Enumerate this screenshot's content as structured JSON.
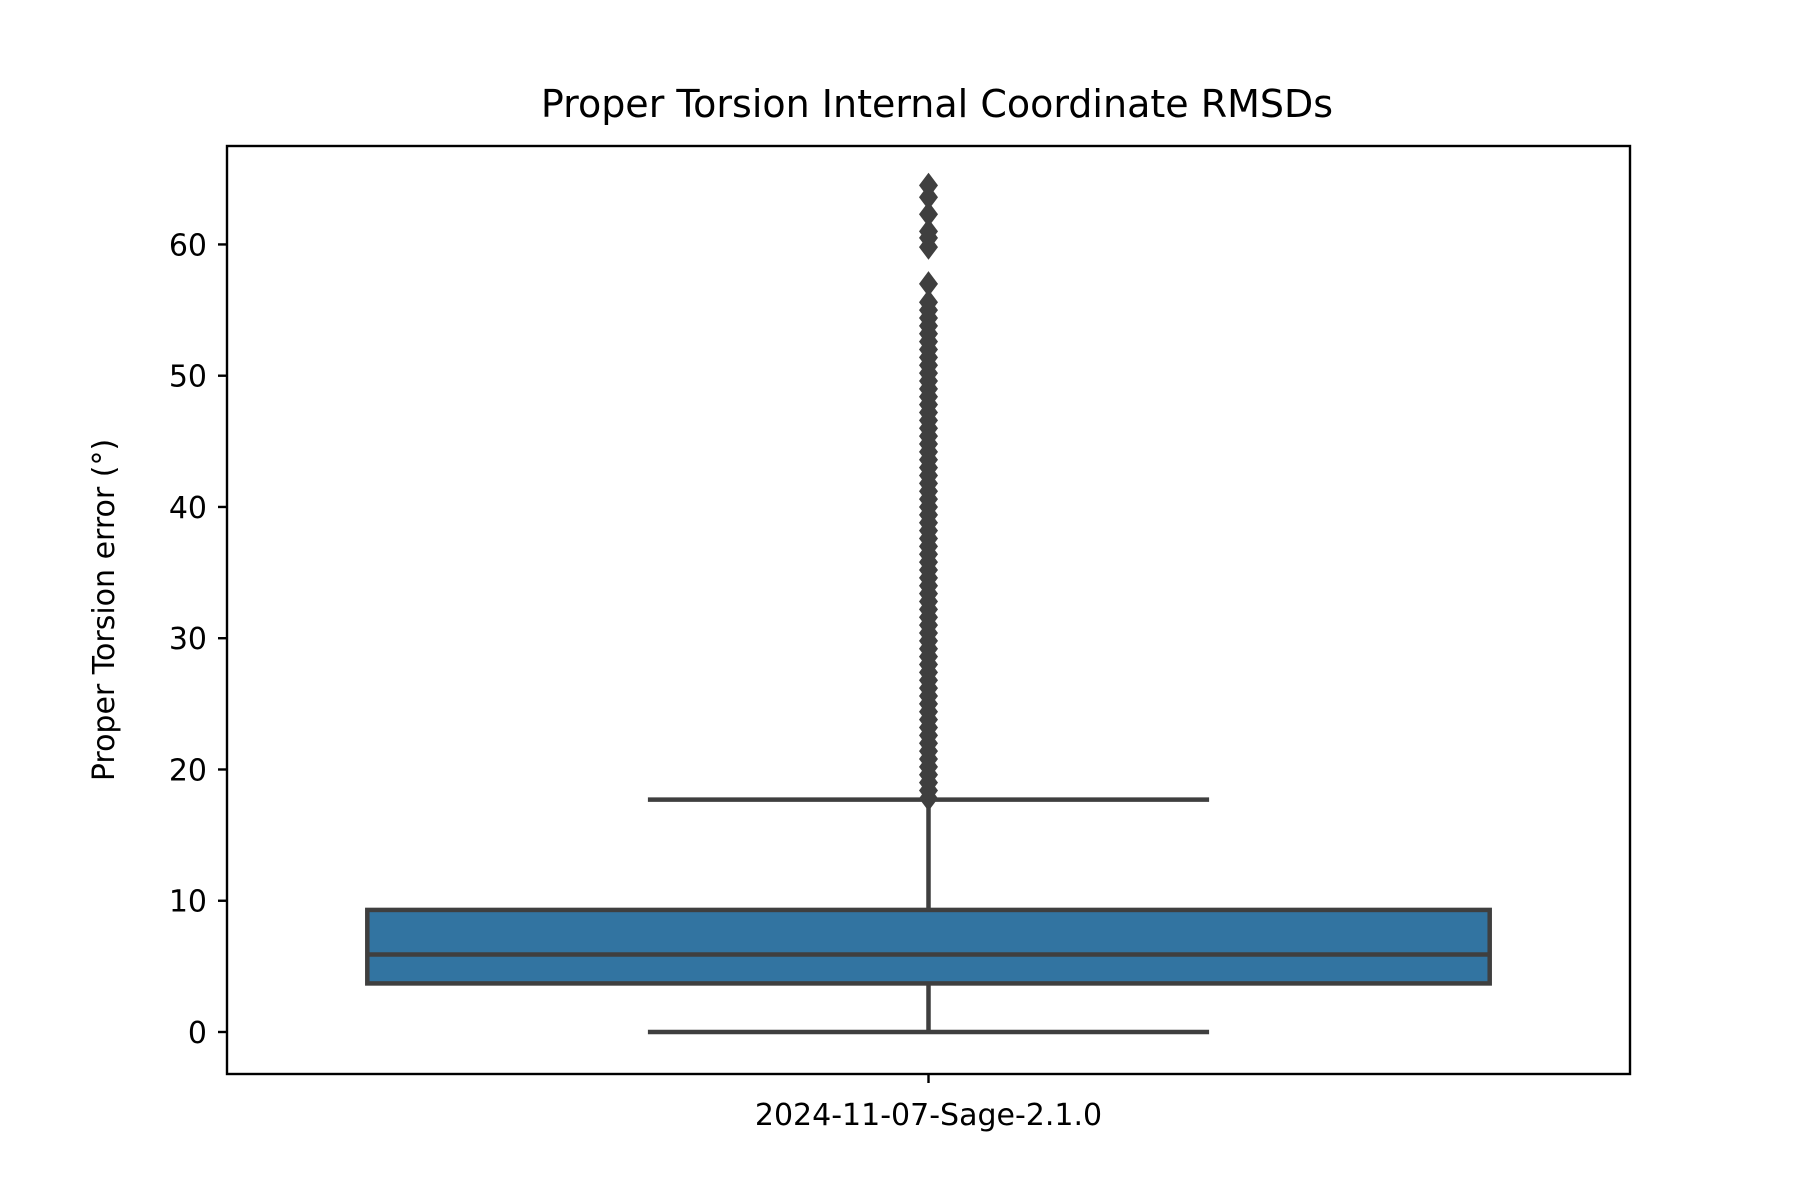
{
  "chart_data": {
    "type": "box",
    "title": "Proper Torsion Internal Coordinate RMSDs",
    "xlabel": "",
    "ylabel": "Proper Torsion error (°)",
    "categories": [
      "2024-11-07-Sage-2.1.0"
    ],
    "ylim": [
      -3.2,
      67.5
    ],
    "yticks": [
      0,
      10,
      20,
      30,
      40,
      50,
      60
    ],
    "ytick_labels": [
      "0",
      "10",
      "20",
      "30",
      "40",
      "50",
      "60"
    ],
    "grid": false,
    "legend": "none",
    "box_color": "#3274a1",
    "line_color": "#3f3f3f",
    "boxes": [
      {
        "category": "2024-11-07-Sage-2.1.0",
        "whisker_low": 0.0,
        "q1": 3.7,
        "median": 5.9,
        "q3": 9.3,
        "whisker_high": 17.7,
        "outliers": [
          17.8,
          18.4,
          19.0,
          19.6,
          20.2,
          20.8,
          21.4,
          22.0,
          22.6,
          23.2,
          23.8,
          24.4,
          25.0,
          25.6,
          26.2,
          26.8,
          27.4,
          28.0,
          28.6,
          29.2,
          29.8,
          30.4,
          31.0,
          31.6,
          32.2,
          32.8,
          33.4,
          34.0,
          34.6,
          35.2,
          35.8,
          36.4,
          37.0,
          37.6,
          38.2,
          38.8,
          39.4,
          40.0,
          40.6,
          41.2,
          41.8,
          42.4,
          43.0,
          43.6,
          44.2,
          44.8,
          45.4,
          46.0,
          46.6,
          47.2,
          47.8,
          48.4,
          49.0,
          49.6,
          50.2,
          50.8,
          51.4,
          52.0,
          52.6,
          53.2,
          53.8,
          54.4,
          55.0,
          55.6,
          57.0,
          59.8,
          60.5,
          61.0,
          62.3,
          63.6,
          64.5
        ]
      }
    ]
  }
}
